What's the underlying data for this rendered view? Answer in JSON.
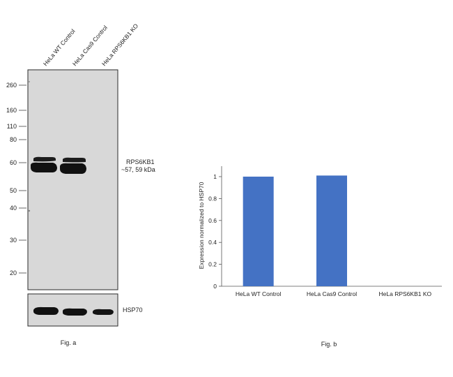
{
  "western_blot": {
    "lanes": [
      "HeLa WT Control",
      "HeLa Cas9 Control",
      "HeLa RPS6KB1 KO"
    ],
    "mw_markers": [
      "260",
      "160",
      "110",
      "80",
      "60",
      "50",
      "40",
      "30",
      "20"
    ],
    "target_label_line1": "RPS6KB1",
    "target_label_line2": "~57, 59 kDa",
    "loading_control_label": "HSP70",
    "caption": "Fig. a",
    "band_colors": {
      "membrane": "#d8d8d8",
      "band": "#111111",
      "frame": "#2a2a2a"
    }
  },
  "chart_data": {
    "type": "bar",
    "categories": [
      "HeLa WT Control",
      "HeLa Cas9 Control",
      "HeLa RPS6KB1 KO"
    ],
    "values": [
      1.0,
      1.01,
      0.0
    ],
    "ylabel": "Expression  normalized to HSP70",
    "xlabel": "",
    "ylim": [
      0,
      1.1
    ],
    "yticks": [
      "0",
      "0.2",
      "0.4",
      "0.6",
      "0.8",
      "1"
    ],
    "bar_color": "#4472c4",
    "grid": false,
    "caption": "Fig. b"
  }
}
